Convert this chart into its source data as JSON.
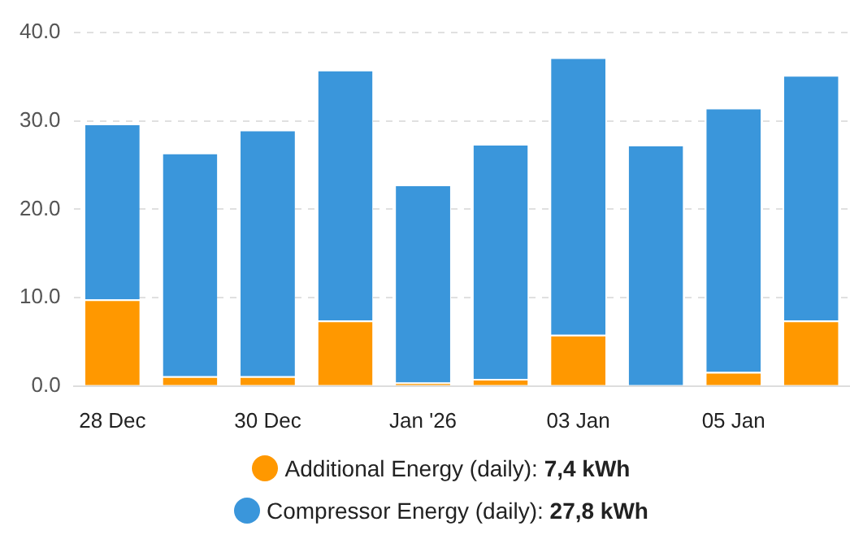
{
  "chart_data": {
    "type": "bar",
    "stacked": true,
    "categories": [
      "28 Dec",
      null,
      "30 Dec",
      null,
      "Jan '26",
      null,
      "03 Jan",
      null,
      "05 Jan",
      null
    ],
    "series": [
      {
        "name": "Additional Energy (daily): 7,4 kWh",
        "color": "#ff9800",
        "values": [
          9.8,
          1.1,
          1.1,
          7.4,
          0.4,
          0.8,
          5.8,
          0,
          1.6,
          7.4
        ]
      },
      {
        "name": "Compressor Energy (daily): 27,8 kWh",
        "color": "#3a96db",
        "values": [
          19.9,
          25.3,
          27.9,
          28.4,
          22.4,
          26.6,
          31.4,
          27.3,
          29.9,
          27.8
        ]
      }
    ],
    "ylim": [
      0,
      40
    ],
    "yticks": [
      {
        "value": 0,
        "label": "0.0"
      },
      {
        "value": 10,
        "label": "10.0"
      },
      {
        "value": 20,
        "label": "20.0"
      },
      {
        "value": 30,
        "label": "30.0"
      },
      {
        "value": 40,
        "label": "40.0"
      }
    ],
    "grid": "y",
    "legend": "bottom"
  }
}
